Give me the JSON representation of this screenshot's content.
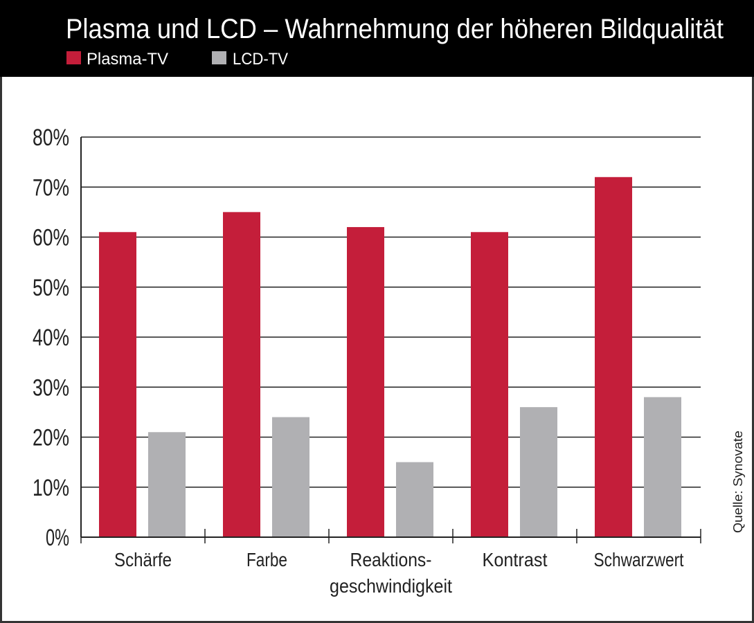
{
  "chart_data": {
    "type": "bar",
    "title": "Plasma und LCD – Wahrnehmung der höheren Bildqualität",
    "categories": [
      "Schärfe",
      "Farbe",
      "Reaktions-\ngeschwindigkeit",
      "Kontrast",
      "Schwarzwert"
    ],
    "series": [
      {
        "name": "Plasma-TV",
        "color": "#c41e3a",
        "values": [
          61,
          65,
          62,
          61,
          72
        ]
      },
      {
        "name": "LCD-TV",
        "color": "#b0b0b3",
        "values": [
          21,
          24,
          15,
          26,
          28
        ]
      }
    ],
    "yticks": [
      "0%",
      "10%",
      "20%",
      "30%",
      "40%",
      "50%",
      "60%",
      "70%",
      "80%"
    ],
    "ylim": [
      0,
      80
    ],
    "ylabel": "",
    "xlabel": "",
    "grid": true,
    "legend": "top-left",
    "source": "Quelle: Synovate"
  }
}
